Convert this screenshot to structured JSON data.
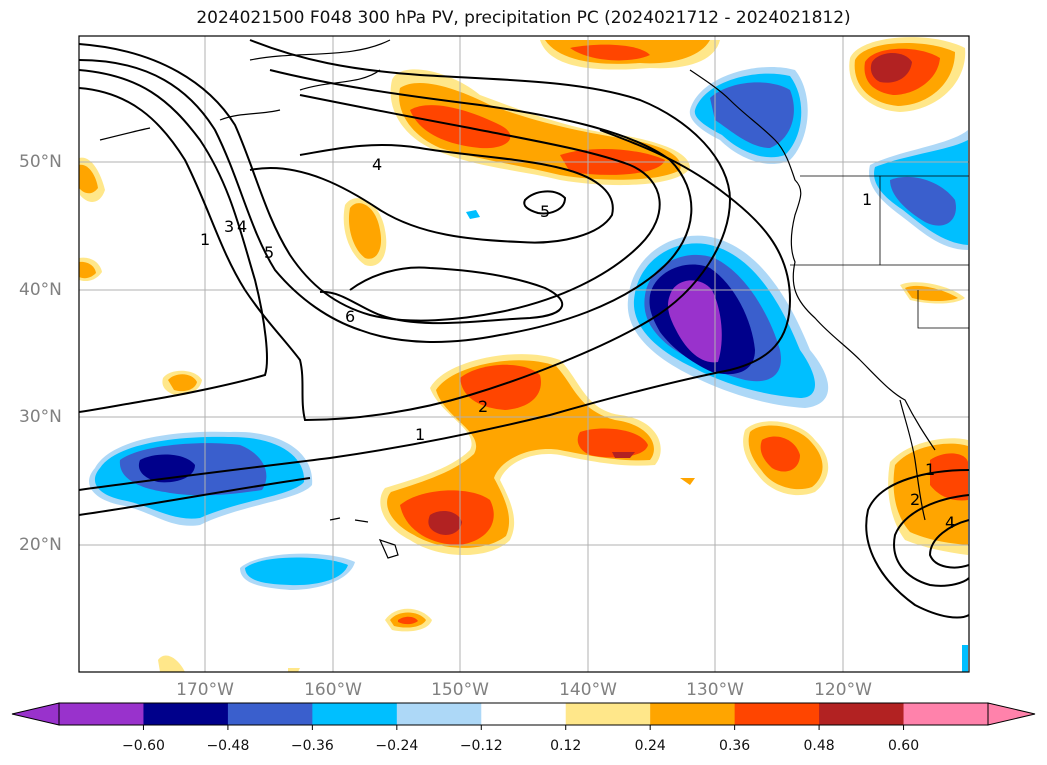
{
  "title": "2024021500 F048 300 hPa PV, precipitation PC (2024021712 - 2024021812)",
  "lat_labels": [
    "50°N",
    "40°N",
    "30°N",
    "20°N"
  ],
  "lon_labels": [
    "170°W",
    "160°W",
    "150°W",
    "140°W",
    "130°W",
    "120°W"
  ],
  "colorbar": {
    "ticks": [
      "−0.60",
      "−0.48",
      "−0.36",
      "−0.24",
      "−0.12",
      "0.12",
      "0.24",
      "0.36",
      "0.48",
      "0.60"
    ],
    "colors": [
      "#9932cc",
      "#00008b",
      "#3a5fcd",
      "#00bfff",
      "#add8f7",
      "#ffffff",
      "#ffe78a",
      "#ffa500",
      "#ff4500",
      "#b22222",
      "#ff82ab"
    ]
  },
  "pv_contour_labels": [
    "1",
    "3",
    "4",
    "5",
    "6",
    "4",
    "5",
    "2",
    "1",
    "1",
    "1",
    "2",
    "4"
  ]
}
